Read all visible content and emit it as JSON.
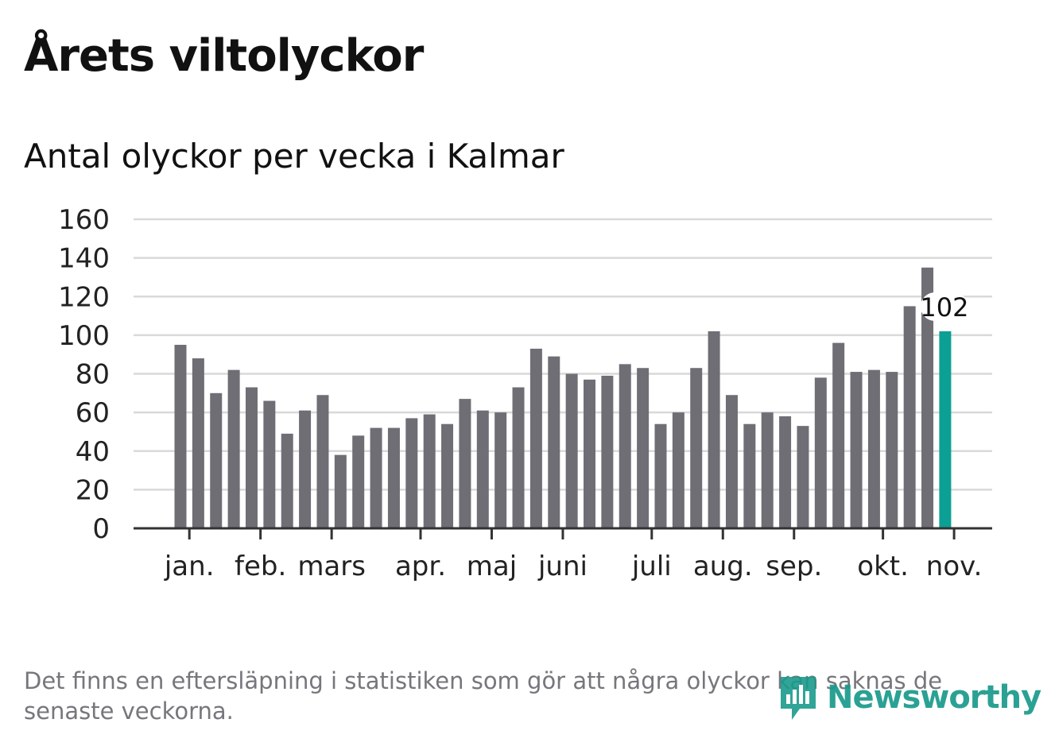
{
  "header": {
    "title": "Årets viltolyckor",
    "subtitle": "Antal olyckor per vecka i Kalmar"
  },
  "footer": {
    "note": "Det finns en eftersläpning i statistiken som gör att några olyckor kan saknas de senaste veckorna.",
    "brand": "Newsworthy"
  },
  "colors": {
    "bar": "#6f6e75",
    "highlight": "#0c9f94",
    "grid": "#d9d9d9",
    "axis": "#333333",
    "text": "#111111",
    "muted": "#76767c",
    "brand": "#1a9a8c"
  },
  "icons": {
    "brand_logo": "bar-chart-speech-bubble-icon"
  },
  "chart_data": {
    "type": "bar",
    "title": "Årets viltolyckor",
    "subtitle": "Antal olyckor per vecka i Kalmar",
    "xlabel": "",
    "ylabel": "",
    "ylim": [
      0,
      160
    ],
    "yticks": [
      0,
      20,
      40,
      60,
      80,
      100,
      120,
      140,
      160
    ],
    "grid": true,
    "legend": "none",
    "month_labels": [
      "jan.",
      "feb.",
      "mars",
      "apr.",
      "maj",
      "juni",
      "juli",
      "aug.",
      "sep.",
      "okt.",
      "nov."
    ],
    "month_label_week_index": [
      0.5,
      4.5,
      8.5,
      13.5,
      17.5,
      21.5,
      26.5,
      30.5,
      34.5,
      39.5,
      43.5
    ],
    "values": [
      95,
      88,
      70,
      82,
      73,
      66,
      49,
      61,
      69,
      38,
      48,
      52,
      52,
      57,
      59,
      54,
      67,
      61,
      60,
      73,
      93,
      89,
      80,
      77,
      79,
      85,
      83,
      54,
      60,
      83,
      102,
      69,
      54,
      60,
      58,
      53,
      78,
      96,
      81,
      82,
      81,
      115,
      135,
      102
    ],
    "highlight_index": 43,
    "annotation": "102"
  }
}
